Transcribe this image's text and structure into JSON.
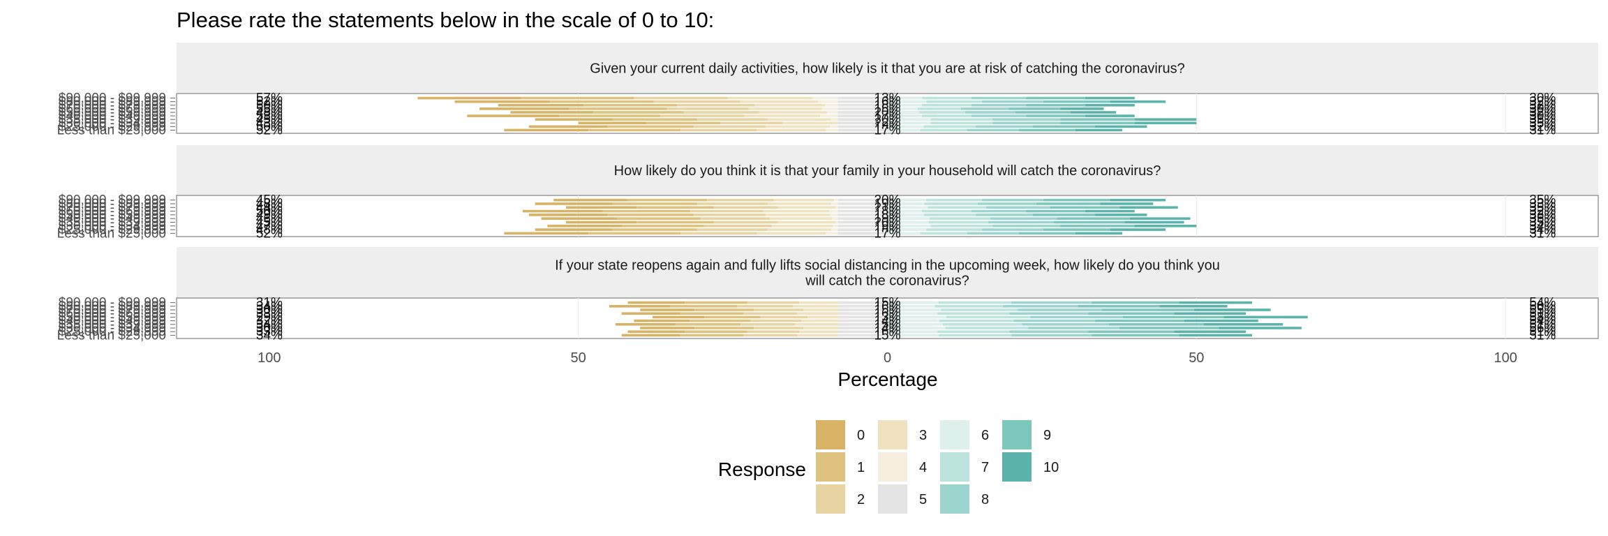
{
  "chart_data": {
    "type": "bar",
    "title": "Please rate the statements below in the scale of 0 to 10:",
    "xlabel": "Percentage",
    "ylabel": "",
    "xlim": [
      -115,
      115
    ],
    "x_ticks": [
      {
        "value": -100,
        "label": "100"
      },
      {
        "value": -50,
        "label": "50"
      },
      {
        "value": 0,
        "label": "0"
      },
      {
        "value": 50,
        "label": "50"
      },
      {
        "value": 100,
        "label": "100"
      }
    ],
    "legend": {
      "title": "Response",
      "position": "bottom",
      "items": [
        {
          "label": "0",
          "color": "#d8b365"
        },
        {
          "label": "1",
          "color": "#dfc27d"
        },
        {
          "label": "2",
          "color": "#e8d3a2"
        },
        {
          "label": "3",
          "color": "#f0e1bf"
        },
        {
          "label": "4",
          "color": "#f6eedf"
        },
        {
          "label": "5",
          "color": "#e4e4e4"
        },
        {
          "label": "6",
          "color": "#def0ec"
        },
        {
          "label": "7",
          "color": "#bde3dd"
        },
        {
          "label": "8",
          "color": "#9cd5ce"
        },
        {
          "label": "9",
          "color": "#7dc7bd"
        },
        {
          "label": "10",
          "color": "#5ab4ac"
        }
      ]
    },
    "categories": [
      "$90,000 - $99,999",
      "$80,000 - $89,999",
      "$70,000 - $79,999",
      "$60,000 - $69,999",
      "$50,000 - $59,999",
      "$40,000 - $49,999",
      "$35,000 - $39,999",
      "$30,000 - $34,999",
      "$25,000 - $29,999",
      "Less than $25,000"
    ],
    "panels": [
      {
        "title": "Given your current daily activities, how likely is it that you are at risk of catching the coronavirus?",
        "rows": [
          {
            "neg_total": 76,
            "pos_total": 40,
            "left_label": "57%",
            "center_label": "13%",
            "right_label": "30%"
          },
          {
            "neg_total": 70,
            "pos_total": 45,
            "left_label": "52%",
            "center_label": "16%",
            "right_label": "32%"
          },
          {
            "neg_total": 63,
            "pos_total": 40,
            "left_label": "50%",
            "center_label": "18%",
            "right_label": "32%"
          },
          {
            "neg_total": 66,
            "pos_total": 35,
            "left_label": "55%",
            "center_label": "15%",
            "right_label": "30%"
          },
          {
            "neg_total": 61,
            "pos_total": 37,
            "left_label": "48%",
            "center_label": "20%",
            "right_label": "32%"
          },
          {
            "neg_total": 68,
            "pos_total": 40,
            "left_label": "53%",
            "center_label": "17%",
            "right_label": "30%"
          },
          {
            "neg_total": 57,
            "pos_total": 50,
            "left_label": "45%",
            "center_label": "20%",
            "right_label": "35%"
          },
          {
            "neg_total": 50,
            "pos_total": 50,
            "left_label": "43%",
            "center_label": "22%",
            "right_label": "35%"
          },
          {
            "neg_total": 58,
            "pos_total": 42,
            "left_label": "50%",
            "center_label": "18%",
            "right_label": "32%"
          },
          {
            "neg_total": 62,
            "pos_total": 38,
            "left_label": "52%",
            "center_label": "17%",
            "right_label": "31%"
          }
        ]
      },
      {
        "title": "How likely do you think it is that your family in your household will catch the coronavirus?",
        "rows": [
          {
            "neg_total": 54,
            "pos_total": 45,
            "left_label": "45%",
            "center_label": "20%",
            "right_label": "35%"
          },
          {
            "neg_total": 57,
            "pos_total": 43,
            "left_label": "48%",
            "center_label": "19%",
            "right_label": "33%"
          },
          {
            "neg_total": 52,
            "pos_total": 47,
            "left_label": "44%",
            "center_label": "21%",
            "right_label": "35%"
          },
          {
            "neg_total": 59,
            "pos_total": 40,
            "left_label": "50%",
            "center_label": "18%",
            "right_label": "32%"
          },
          {
            "neg_total": 58,
            "pos_total": 42,
            "left_label": "49%",
            "center_label": "18%",
            "right_label": "33%"
          },
          {
            "neg_total": 56,
            "pos_total": 49,
            "left_label": "46%",
            "center_label": "19%",
            "right_label": "35%"
          },
          {
            "neg_total": 52,
            "pos_total": 48,
            "left_label": "45%",
            "center_label": "20%",
            "right_label": "35%"
          },
          {
            "neg_total": 55,
            "pos_total": 50,
            "left_label": "47%",
            "center_label": "19%",
            "right_label": "34%"
          },
          {
            "neg_total": 57,
            "pos_total": 45,
            "left_label": "48%",
            "center_label": "18%",
            "right_label": "34%"
          },
          {
            "neg_total": 62,
            "pos_total": 38,
            "left_label": "52%",
            "center_label": "17%",
            "right_label": "31%"
          }
        ]
      },
      {
        "title": "If your state reopens again and fully lifts social distancing in the upcoming week, how likely do you think you will catch the coronavirus?",
        "rows": [
          {
            "neg_total": 42,
            "pos_total": 59,
            "left_label": "31%",
            "center_label": "15%",
            "right_label": "54%"
          },
          {
            "neg_total": 45,
            "pos_total": 55,
            "left_label": "34%",
            "center_label": "16%",
            "right_label": "50%"
          },
          {
            "neg_total": 40,
            "pos_total": 62,
            "left_label": "30%",
            "center_label": "15%",
            "right_label": "55%"
          },
          {
            "neg_total": 43,
            "pos_total": 58,
            "left_label": "33%",
            "center_label": "16%",
            "right_label": "51%"
          },
          {
            "neg_total": 38,
            "pos_total": 68,
            "left_label": "29%",
            "center_label": "13%",
            "right_label": "58%"
          },
          {
            "neg_total": 41,
            "pos_total": 60,
            "left_label": "32%",
            "center_label": "14%",
            "right_label": "54%"
          },
          {
            "neg_total": 44,
            "pos_total": 64,
            "left_label": "34%",
            "center_label": "15%",
            "right_label": "51%"
          },
          {
            "neg_total": 40,
            "pos_total": 67,
            "left_label": "30%",
            "center_label": "14%",
            "right_label": "56%"
          },
          {
            "neg_total": 42,
            "pos_total": 58,
            "left_label": "33%",
            "center_label": "16%",
            "right_label": "51%"
          },
          {
            "neg_total": 43,
            "pos_total": 59,
            "left_label": "34%",
            "center_label": "15%",
            "right_label": "51%"
          }
        ]
      }
    ]
  }
}
